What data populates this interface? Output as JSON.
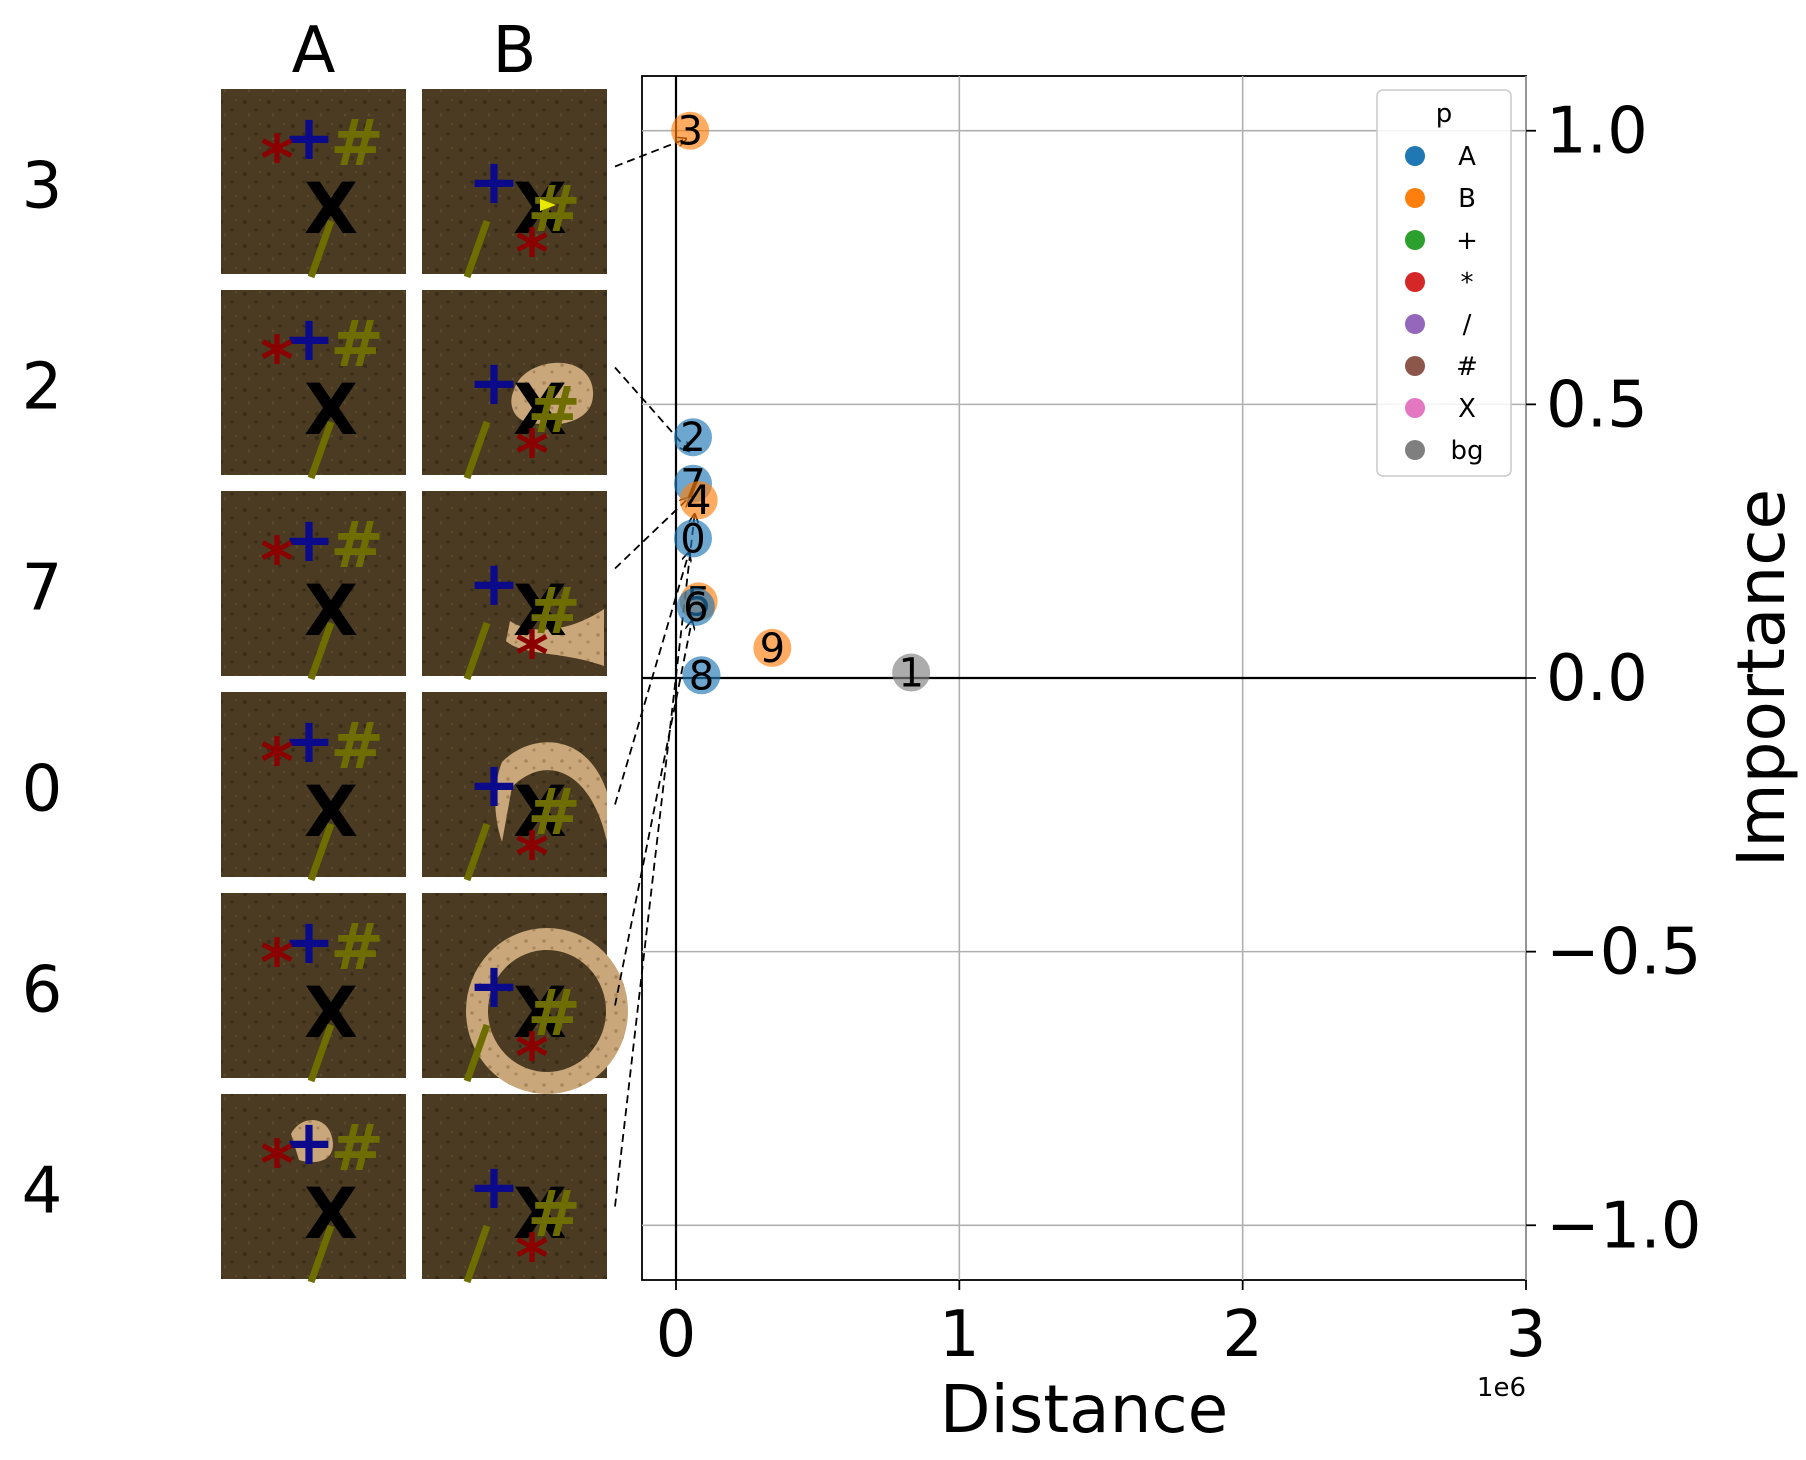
{
  "panel": {
    "columns": [
      "A",
      "B"
    ],
    "rows": [
      {
        "label": "3",
        "changed_col": "B",
        "change": "highlight at X"
      },
      {
        "label": "2",
        "changed_col": "B",
        "change": "blob around X"
      },
      {
        "label": "7",
        "changed_col": "B",
        "change": "lower arc near X"
      },
      {
        "label": "0",
        "changed_col": "B",
        "change": "upper arc near X"
      },
      {
        "label": "6",
        "changed_col": "B",
        "change": "ring around X"
      },
      {
        "label": "4",
        "changed_col": "A",
        "change": "patch under plus"
      }
    ]
  },
  "chart_data": {
    "type": "scatter",
    "xlabel": "Distance",
    "ylabel": "Importance",
    "x_offset_label": "1e6",
    "xlim": [
      -0.12,
      3.0
    ],
    "ylim": [
      -1.1,
      1.1
    ],
    "x_ticks": [
      0,
      1,
      2,
      3
    ],
    "x_tick_labels": [
      "0",
      "1",
      "2",
      "3"
    ],
    "y_ticks": [
      1.0,
      0.5,
      0.0,
      -0.5,
      -1.0
    ],
    "y_tick_labels": [
      "1.0",
      "0.5",
      "0.0",
      "−0.5",
      "−1.0"
    ],
    "grid": true,
    "legend": {
      "title": "p",
      "placement": "upper right",
      "entries": [
        {
          "label": "A",
          "color": "#1f77b4"
        },
        {
          "label": "B",
          "color": "#ff7f0e"
        },
        {
          "label": "+",
          "color": "#2ca02c"
        },
        {
          "label": "*",
          "color": "#d62728"
        },
        {
          "label": "/",
          "color": "#9467bd"
        },
        {
          "label": "#",
          "color": "#8c564b"
        },
        {
          "label": "X",
          "color": "#e377c2"
        },
        {
          "label": "bg",
          "color": "#7f7f7f"
        }
      ]
    },
    "points": [
      {
        "label": "3",
        "p": "B",
        "x": 0.05,
        "y": 1.0,
        "shown": true
      },
      {
        "label": "2",
        "p": "A",
        "x": 0.06,
        "y": 0.44,
        "shown": true
      },
      {
        "label": "7",
        "p": "A",
        "x": 0.06,
        "y": 0.355,
        "shown": true
      },
      {
        "label": "4",
        "p": "B",
        "x": 0.08,
        "y": 0.325,
        "shown": true
      },
      {
        "label": "0",
        "p": "A",
        "x": 0.06,
        "y": 0.255,
        "shown": true
      },
      {
        "label": "5",
        "p": "B",
        "x": 0.08,
        "y": 0.14,
        "shown": false
      },
      {
        "label": "6",
        "p": "A",
        "x": 0.07,
        "y": 0.13,
        "shown": true
      },
      {
        "label": "9",
        "p": "B",
        "x": 0.34,
        "y": 0.055,
        "shown": false
      },
      {
        "label": "1",
        "p": "bg",
        "x": 0.83,
        "y": 0.01,
        "shown": false
      },
      {
        "label": "8",
        "p": "A",
        "x": 0.09,
        "y": 0.005,
        "shown": false
      }
    ]
  },
  "colors": {
    "A": "#1f77b4",
    "B": "#ff7f0e",
    "bg": "#7f7f7f",
    "tile_bg": "#4a3b22",
    "tile_dark": "#3a2e19",
    "plus": "#0a0a8a",
    "star": "#8b0000",
    "hash": "#6e6e00",
    "slash": "#6e6e00",
    "x_glyph": "#000000",
    "patch": "#c9a77a"
  }
}
